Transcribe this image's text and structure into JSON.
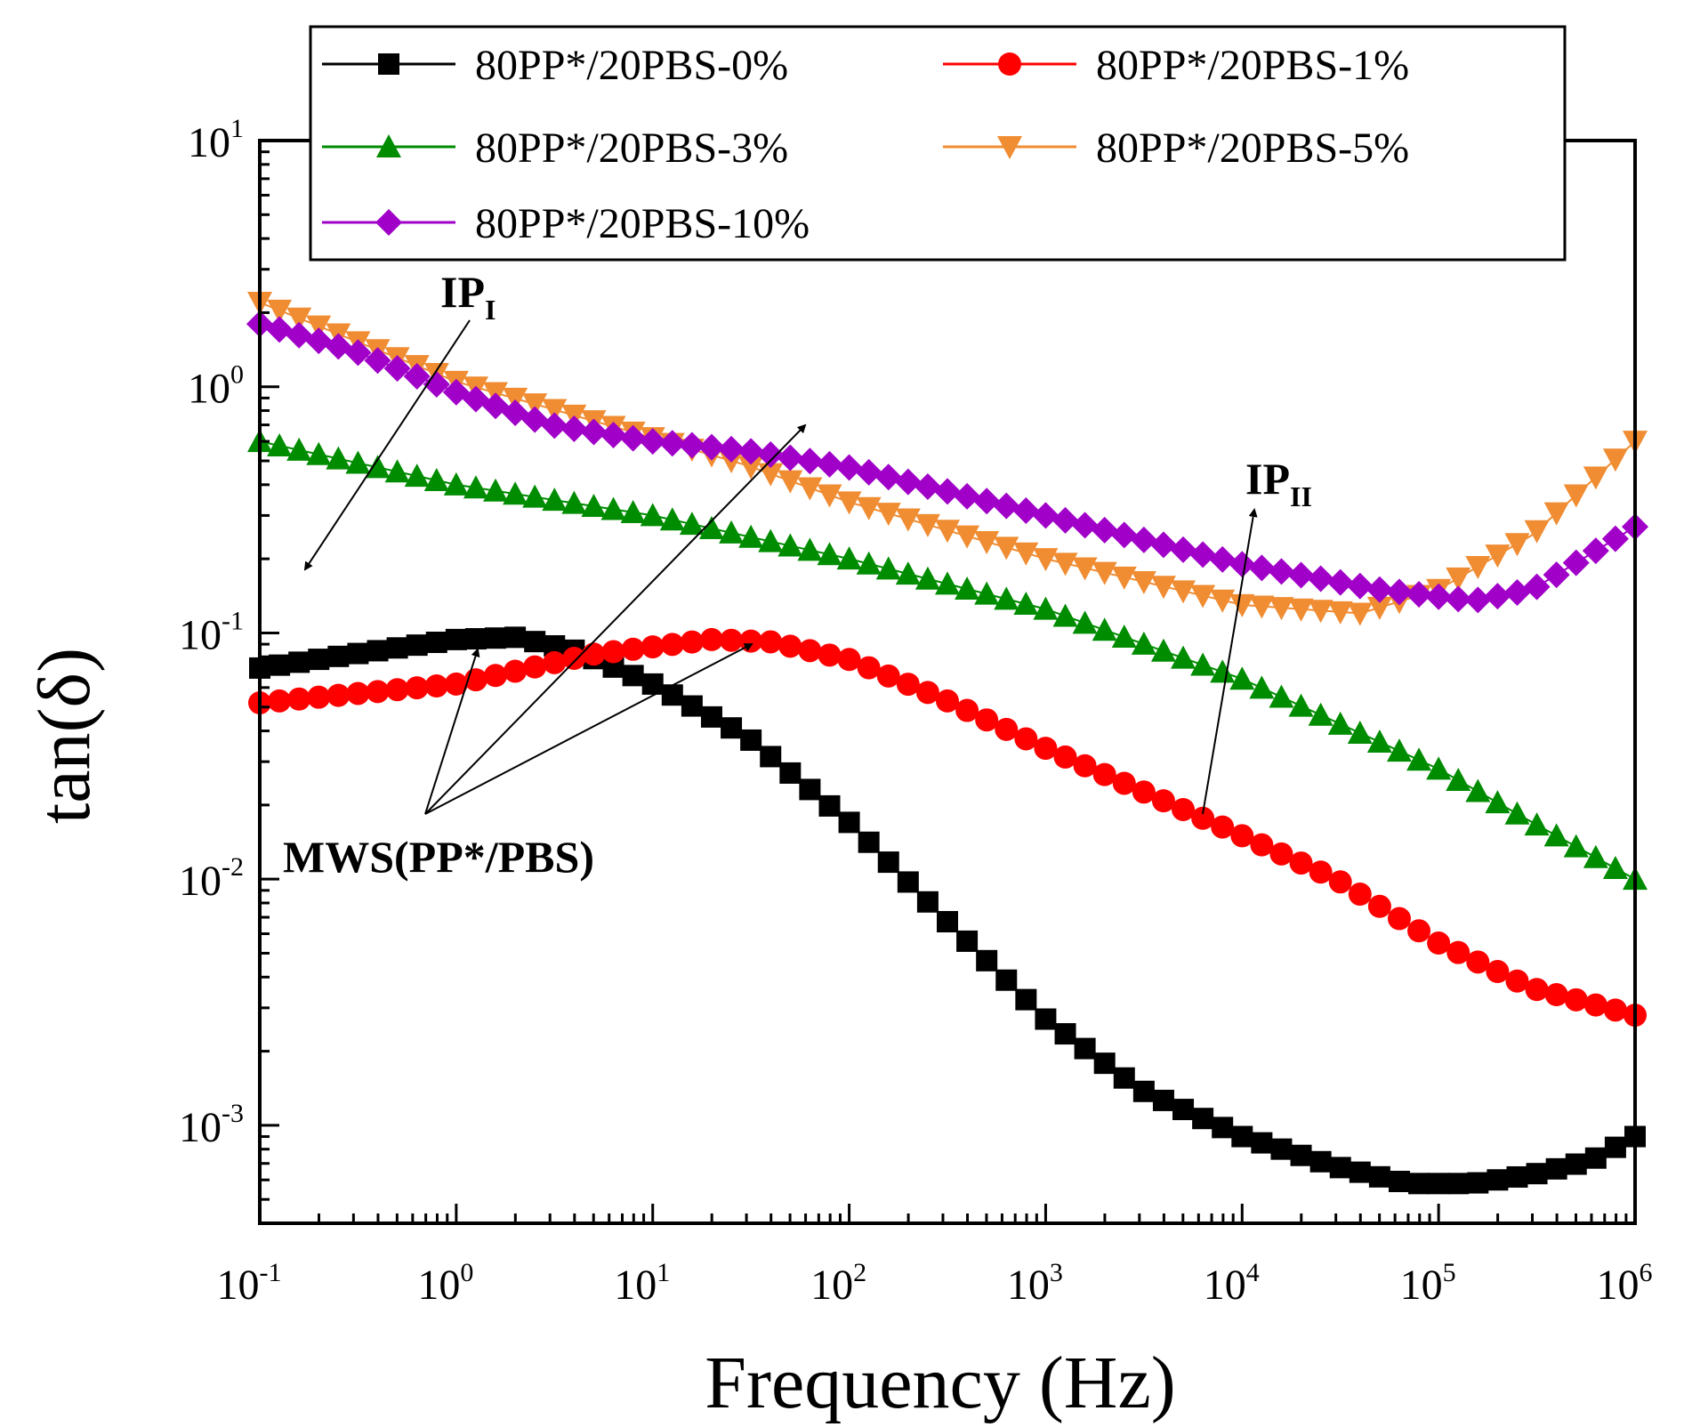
{
  "chart_data": {
    "type": "scatter",
    "x_scale": "log",
    "y_scale": "log",
    "xlabel": "Frequency (Hz)",
    "ylabel": "tan(δ)",
    "xlim": [
      0.1,
      1000000
    ],
    "ylim": [
      0.0004,
      10
    ],
    "x_ticks": [
      {
        "value": 0.1,
        "base": "10",
        "exp": "-1"
      },
      {
        "value": 1,
        "base": "10",
        "exp": "0"
      },
      {
        "value": 10,
        "base": "10",
        "exp": "1"
      },
      {
        "value": 100,
        "base": "10",
        "exp": "2"
      },
      {
        "value": 1000,
        "base": "10",
        "exp": "3"
      },
      {
        "value": 10000,
        "base": "10",
        "exp": "4"
      },
      {
        "value": 100000,
        "base": "10",
        "exp": "5"
      },
      {
        "value": 1000000,
        "base": "10",
        "exp": "6"
      }
    ],
    "y_ticks": [
      {
        "value": 0.001,
        "base": "10",
        "exp": "-3"
      },
      {
        "value": 0.01,
        "base": "10",
        "exp": "-2"
      },
      {
        "value": 0.1,
        "base": "10",
        "exp": "-1"
      },
      {
        "value": 1,
        "base": "10",
        "exp": "0"
      },
      {
        "value": 10,
        "base": "10",
        "exp": "1"
      }
    ],
    "legend_position": "top",
    "series": [
      {
        "name": "80PP*/20PBS-0%",
        "color": "#000000",
        "marker": "square",
        "points": [
          [
            0.1,
            0.072
          ],
          [
            0.3,
            0.082
          ],
          [
            1,
            0.094
          ],
          [
            2,
            0.096
          ],
          [
            4,
            0.085
          ],
          [
            10,
            0.062
          ],
          [
            30,
            0.038
          ],
          [
            100,
            0.017
          ],
          [
            300,
            0.007
          ],
          [
            1000,
            0.0027
          ],
          [
            3000,
            0.0014
          ],
          [
            10000,
            0.0009
          ],
          [
            30000,
            0.00068
          ],
          [
            70000,
            0.00058
          ],
          [
            150000,
            0.00058
          ],
          [
            300000,
            0.00063
          ],
          [
            600000,
            0.00072
          ],
          [
            1000000,
            0.0009
          ]
        ]
      },
      {
        "name": "80PP*/20PBS-1%",
        "color": "#ff0000",
        "marker": "circle",
        "points": [
          [
            0.1,
            0.052
          ],
          [
            1,
            0.062
          ],
          [
            5,
            0.082
          ],
          [
            20,
            0.094
          ],
          [
            40,
            0.092
          ],
          [
            100,
            0.078
          ],
          [
            300,
            0.054
          ],
          [
            1000,
            0.034
          ],
          [
            3000,
            0.023
          ],
          [
            10000,
            0.015
          ],
          [
            30000,
            0.01
          ],
          [
            100000,
            0.0055
          ],
          [
            300000,
            0.0036
          ],
          [
            1000000,
            0.0028
          ]
        ]
      },
      {
        "name": "80PP*/20PBS-3%",
        "color": "#008c00",
        "marker": "triangle-up",
        "points": [
          [
            0.1,
            0.6
          ],
          [
            1,
            0.4
          ],
          [
            10,
            0.3
          ],
          [
            100,
            0.2
          ],
          [
            1000,
            0.125
          ],
          [
            10000,
            0.065
          ],
          [
            100000,
            0.028
          ],
          [
            300000,
            0.017
          ],
          [
            1000000,
            0.01
          ]
        ]
      },
      {
        "name": "80PP*/20PBS-5%",
        "color": "#f08c32",
        "marker": "triangle-down",
        "points": [
          [
            0.1,
            2.2
          ],
          [
            1,
            1.05
          ],
          [
            10,
            0.62
          ],
          [
            30,
            0.48
          ],
          [
            100,
            0.34
          ],
          [
            1000,
            0.2
          ],
          [
            10000,
            0.13
          ],
          [
            40000,
            0.12
          ],
          [
            100000,
            0.15
          ],
          [
            300000,
            0.25
          ],
          [
            1000000,
            0.6
          ]
        ]
      },
      {
        "name": "80PP*/20PBS-10%",
        "color": "#a000c8",
        "marker": "diamond",
        "points": [
          [
            0.1,
            1.8
          ],
          [
            0.3,
            1.4
          ],
          [
            1,
            0.95
          ],
          [
            3,
            0.7
          ],
          [
            10,
            0.6
          ],
          [
            30,
            0.55
          ],
          [
            100,
            0.47
          ],
          [
            1000,
            0.3
          ],
          [
            10000,
            0.19
          ],
          [
            50000,
            0.15
          ],
          [
            150000,
            0.135
          ],
          [
            300000,
            0.15
          ],
          [
            1000000,
            0.27
          ]
        ]
      }
    ],
    "annotations": [
      {
        "main": "IP",
        "sub": "I"
      },
      {
        "main": "IP",
        "sub": "II"
      },
      {
        "main": "MWS(PP*/PBS)",
        "sub": ""
      }
    ]
  }
}
